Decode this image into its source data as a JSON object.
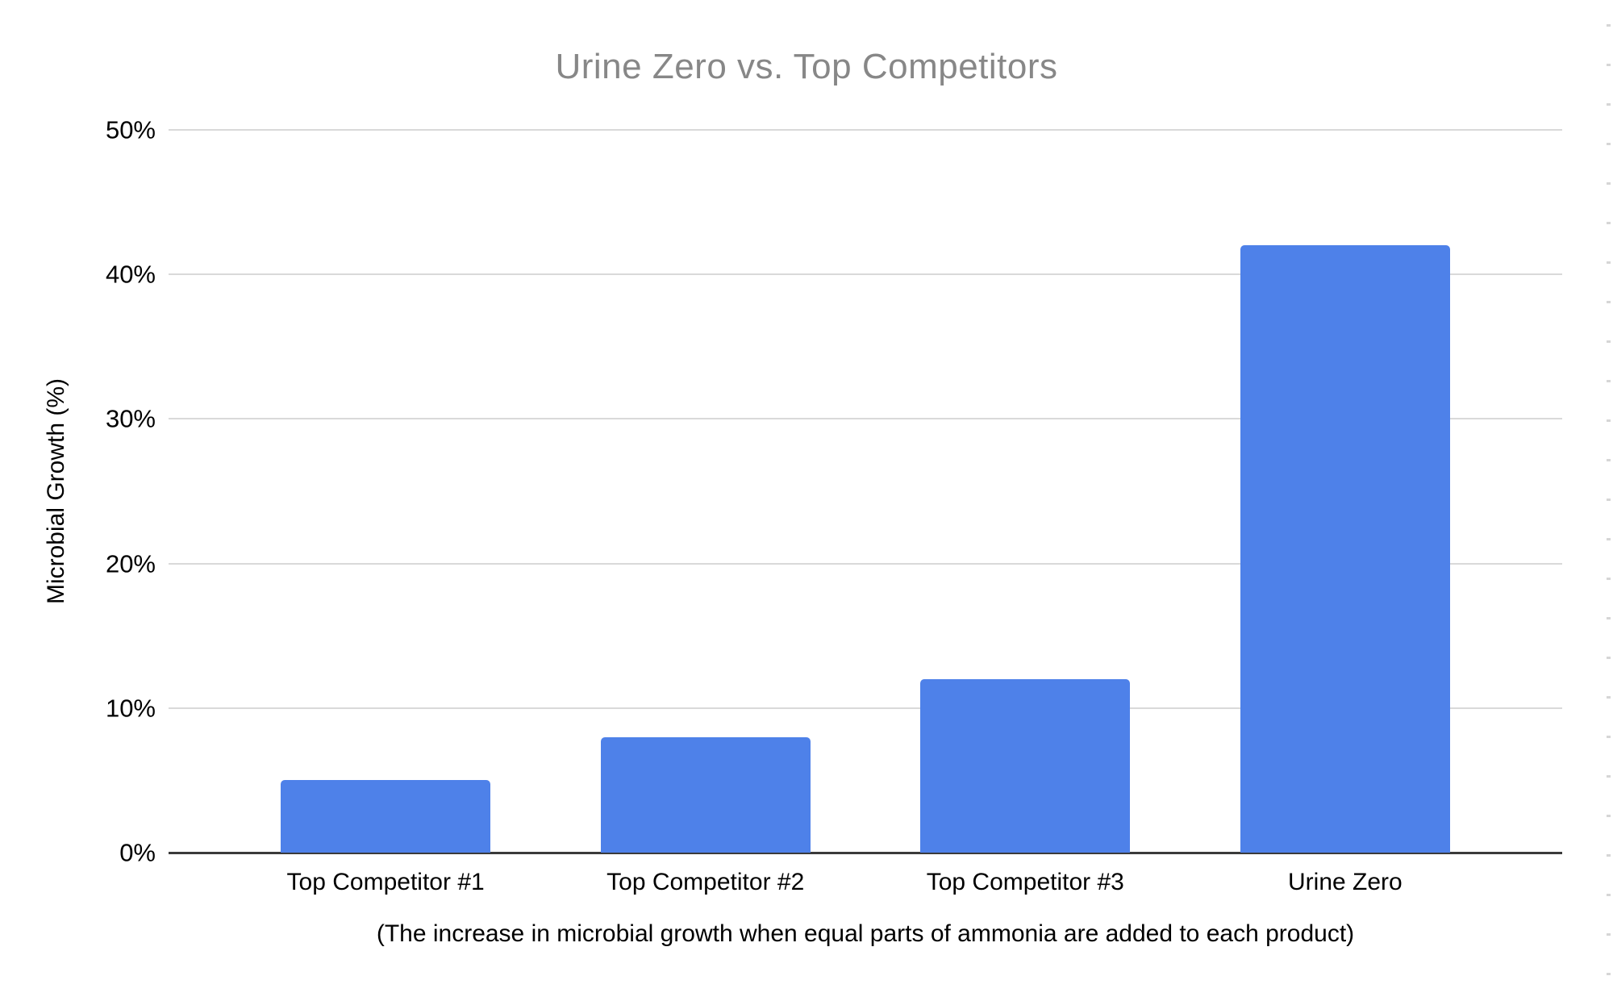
{
  "chart": {
    "title": "Urine Zero vs. Top Competitors",
    "y_axis_title": "Microbial Growth (%)",
    "caption": "(The increase in microbial growth when equal parts of ammonia are added to each product)"
  },
  "chart_data": {
    "type": "bar",
    "title": "Urine Zero vs. Top Competitors",
    "categories": [
      "Top Competitor #1",
      "Top Competitor #2",
      "Top Competitor #3",
      "Urine Zero"
    ],
    "values": [
      5,
      8,
      12,
      42
    ],
    "value_unit": "%",
    "xlabel": "",
    "ylabel": "Microbial Growth (%)",
    "ylim": [
      0,
      50
    ],
    "yticks": [
      {
        "value": 0,
        "label": "0%"
      },
      {
        "value": 10,
        "label": "10%"
      },
      {
        "value": 20,
        "label": "20%"
      },
      {
        "value": 30,
        "label": "30%"
      },
      {
        "value": 40,
        "label": "40%"
      },
      {
        "value": 50,
        "label": "50%"
      }
    ],
    "grid": "horizontal",
    "legend_position": "none",
    "annotation": "(The increase in microbial growth when equal parts of ammonia are added to each product)"
  },
  "colors": {
    "bar": "#4e81e9",
    "title_text": "#878787",
    "gridline": "#d9d9d9",
    "axis_line": "#3a3a3a",
    "label_text": "#000000",
    "edge_tick": "#d6d6d6"
  }
}
